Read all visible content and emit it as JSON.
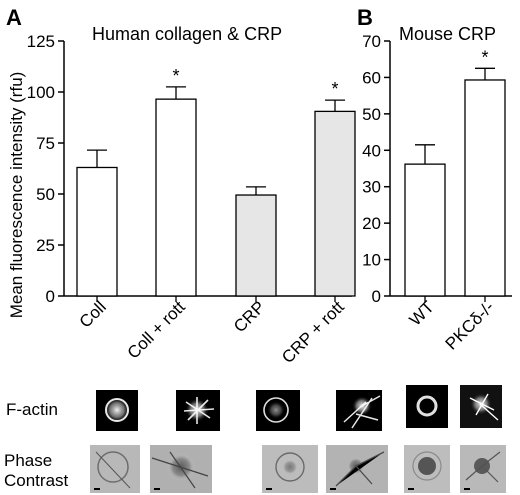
{
  "panel_a": {
    "letter": "A",
    "title": "Human collagen & CRP"
  },
  "panel_b": {
    "letter": "B",
    "title": "Mouse CRP"
  },
  "y_axis_label": "Mean fluorescence intensity (rfu)",
  "colors": {
    "open_bar": "#ffffff",
    "shaded_bar": "#e6e6e6",
    "axis": "#000000"
  },
  "chart_data": [
    {
      "type": "bar",
      "title": "Human collagen & CRP",
      "ylabel": "Mean fluorescence intensity (rfu)",
      "ylim": [
        0,
        125
      ],
      "yticks": [
        0,
        25,
        50,
        75,
        100,
        125
      ],
      "categories": [
        "Coll",
        "Coll + rott",
        "CRP",
        "CRP + rott"
      ],
      "values": [
        63,
        96.5,
        49.5,
        90.5
      ],
      "errors": [
        8.5,
        6,
        4,
        5.5
      ],
      "fills": [
        "open",
        "open",
        "shaded",
        "shaded"
      ],
      "significance": [
        "",
        "*",
        "",
        "*"
      ],
      "grid": false
    },
    {
      "type": "bar",
      "title": "Mouse CRP",
      "ylim": [
        0,
        70
      ],
      "yticks": [
        0,
        10,
        20,
        30,
        40,
        50,
        60,
        70
      ],
      "categories": [
        "WT",
        "PKCδ-/-"
      ],
      "values": [
        36.2,
        59.3
      ],
      "errors": [
        5.3,
        3.2
      ],
      "fills": [
        "open",
        "open"
      ],
      "significance": [
        "",
        "*"
      ],
      "grid": false
    }
  ],
  "image_rows": [
    {
      "label": "F-actin"
    },
    {
      "label": "Phase\nContrast"
    }
  ]
}
